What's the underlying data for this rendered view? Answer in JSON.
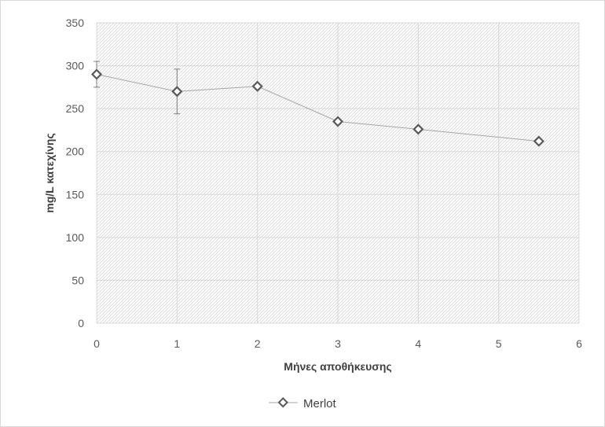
{
  "chart_data": {
    "type": "scatter",
    "title": "",
    "xlabel": "Μήνες αποθήκευσης",
    "ylabel": "mg/L κατεχίνης",
    "xlim": [
      0,
      6
    ],
    "ylim": [
      0,
      350
    ],
    "x_ticks": [
      0,
      1,
      2,
      3,
      4,
      5,
      6
    ],
    "y_ticks": [
      0,
      50,
      100,
      150,
      200,
      250,
      300,
      350
    ],
    "grid": true,
    "legend_position": "bottom",
    "series": [
      {
        "name": "Merlot",
        "x": [
          0,
          1,
          2,
          3,
          4,
          5.5
        ],
        "y": [
          290,
          270,
          276,
          235,
          226,
          212
        ],
        "error": [
          15,
          26,
          0,
          0,
          0,
          0
        ],
        "marker": "diamond-open",
        "color": "#595959",
        "line_color": "#a6a6a6"
      }
    ]
  }
}
